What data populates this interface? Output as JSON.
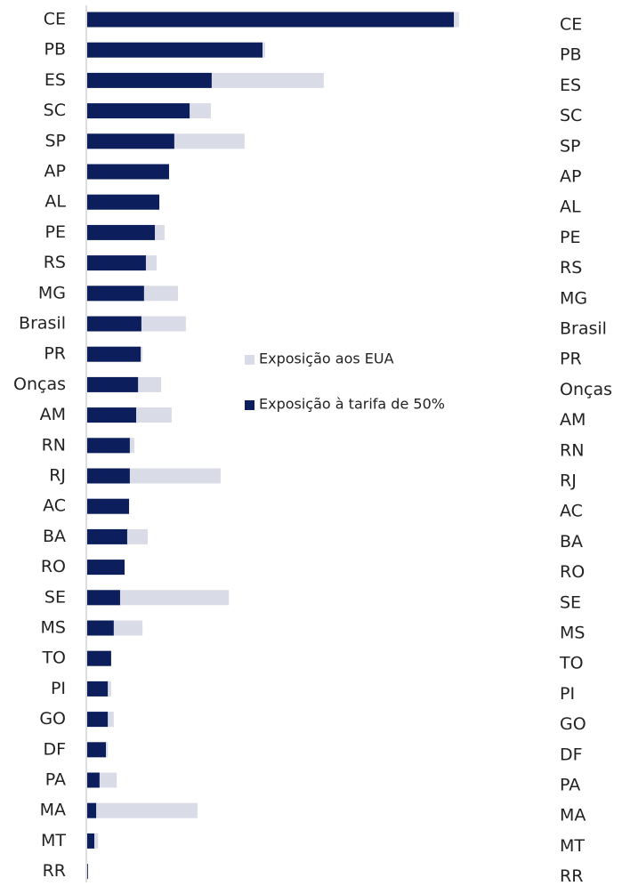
{
  "chart_data": {
    "type": "bar",
    "orientation": "horizontal",
    "overlap": true,
    "categories": [
      "CE",
      "PB",
      "ES",
      "SC",
      "SP",
      "AP",
      "AL",
      "PE",
      "RS",
      "MG",
      "Brasil",
      "PR",
      "Onças",
      "AM",
      "RN",
      "RJ",
      "AC",
      "BA",
      "RO",
      "SE",
      "MS",
      "TO",
      "PI",
      "GO",
      "DF",
      "PA",
      "MA",
      "MT",
      "RR"
    ],
    "series": [
      {
        "name": "Exposição aos EUA",
        "color": "#d9dbe7",
        "values": [
          99.5,
          47.6,
          63.3,
          33.1,
          42.1,
          21.9,
          19.3,
          20.7,
          18.6,
          24.3,
          26.4,
          14.8,
          19.8,
          22.6,
          12.6,
          35.7,
          11.2,
          16.2,
          10.0,
          37.9,
          14.8,
          6.4,
          6.4,
          7.1,
          5.5,
          7.9,
          29.5,
          2.9,
          0.2
        ]
      },
      {
        "name": "Exposição à tarifa de 50%",
        "color": "#0c1f5c",
        "values": [
          98.1,
          46.9,
          33.3,
          27.4,
          23.3,
          21.9,
          19.3,
          18.1,
          15.7,
          15.2,
          14.5,
          14.3,
          13.6,
          13.1,
          11.4,
          11.4,
          11.2,
          10.7,
          10.0,
          8.8,
          7.1,
          6.4,
          5.5,
          5.5,
          5.0,
          3.3,
          2.4,
          1.9,
          0.2
        ]
      }
    ],
    "xlim": [
      0,
      100
    ]
  }
}
